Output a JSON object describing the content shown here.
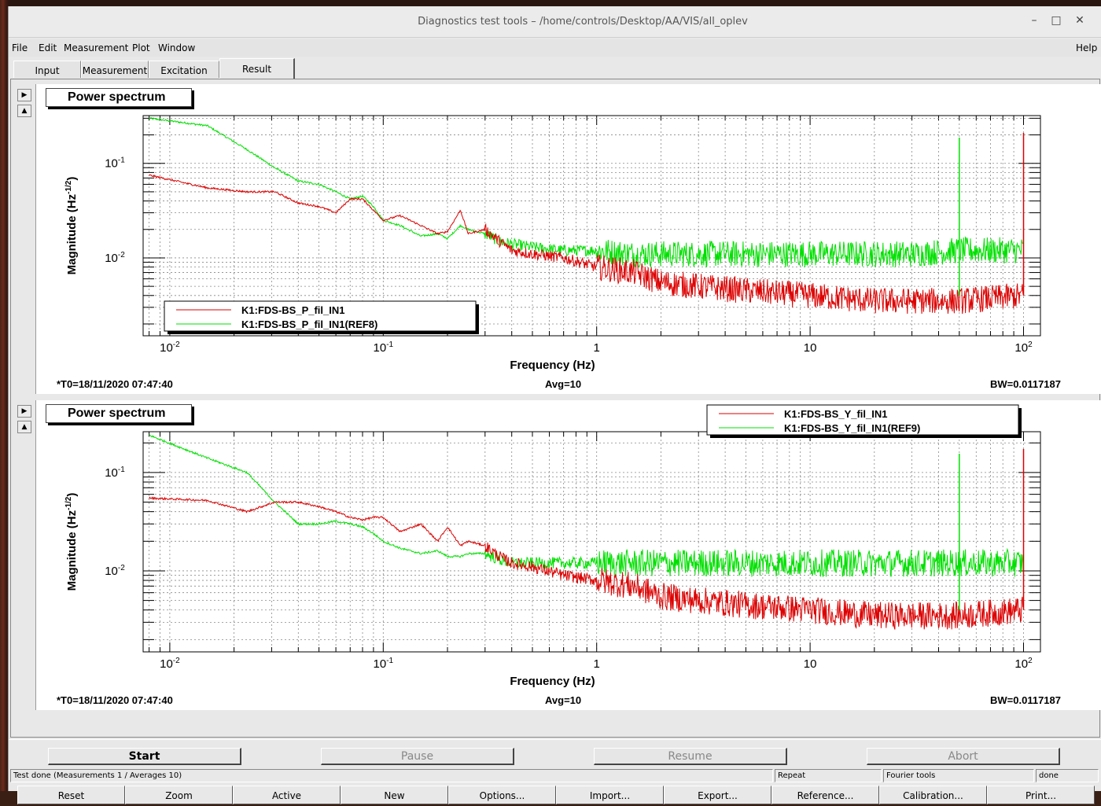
{
  "window": {
    "title": "Diagnostics test tools – /home/controls/Desktop/AA/VIS/all_oplev",
    "minimize": "–",
    "maximize": "□",
    "close": "✕"
  },
  "menubar": {
    "items": [
      "File",
      "Edit",
      "Measurement",
      "Plot",
      "Window"
    ],
    "help": "Help"
  },
  "tabs": [
    "Input",
    "Measurement",
    "Excitation",
    "Result"
  ],
  "active_tab": "Result",
  "colors": {
    "series_measured": "#dd0000",
    "series_reference": "#00e000",
    "timestamp": "#ee0000"
  },
  "plots": [
    {
      "title": "Power spectrum",
      "timestamp": "*T0=18/11/2020 07:47:40",
      "avg": "Avg=10",
      "bw": "BW=0.0117187",
      "legend": [
        "K1:FDS-BS_P_fil_IN1",
        "K1:FDS-BS_P_fil_IN1(REF8)"
      ],
      "legend_position": "bottom-left",
      "xlabel": "Frequency (Hz)",
      "ylabel": "Magnitude (Hz",
      "ylabel_exp": "-1/2",
      "ylabel_close": ")"
    },
    {
      "title": "Power spectrum",
      "timestamp": "*T0=18/11/2020 07:47:40",
      "avg": "Avg=10",
      "bw": "BW=0.0117187",
      "legend": [
        "K1:FDS-BS_Y_fil_IN1",
        "K1:FDS-BS_Y_fil_IN1(REF9)"
      ],
      "legend_position": "top-right",
      "xlabel": "Frequency (Hz)",
      "ylabel": "Magnitude (Hz",
      "ylabel_exp": "-1/2",
      "ylabel_close": ")"
    }
  ],
  "chart_data": [
    {
      "type": "line",
      "title": "Power spectrum",
      "xlabel": "Frequency (Hz)",
      "ylabel": "Magnitude (Hz^-1/2)",
      "xscale": "log",
      "yscale": "log",
      "xlim": [
        0.0075,
        120
      ],
      "ylim": [
        0.0015,
        0.32
      ],
      "grid": true,
      "xticks": [
        {
          "base": "10",
          "exp": "-2",
          "v": 0.01
        },
        {
          "base": "10",
          "exp": "-1",
          "v": 0.1
        },
        {
          "base": "1",
          "exp": "",
          "v": 1
        },
        {
          "base": "10",
          "exp": "",
          "v": 10
        },
        {
          "base": "10",
          "exp": "2",
          "v": 100
        }
      ],
      "yticks": [
        {
          "base": "10",
          "exp": "-1",
          "v": 0.1
        },
        {
          "base": "10",
          "exp": "-2",
          "v": 0.01
        }
      ],
      "series": [
        {
          "name": "K1:FDS-BS_P_fil_IN1",
          "x": [
            0.008,
            0.015,
            0.023,
            0.031,
            0.04,
            0.05,
            0.06,
            0.07,
            0.08,
            0.09,
            0.1,
            0.12,
            0.15,
            0.18,
            0.2,
            0.23,
            0.25,
            0.3,
            0.35,
            0.4,
            0.5,
            0.7,
            1,
            1.5,
            2,
            3,
            5,
            10,
            20,
            30,
            50,
            100
          ],
          "values": [
            0.075,
            0.055,
            0.05,
            0.05,
            0.038,
            0.035,
            0.03,
            0.042,
            0.042,
            0.032,
            0.025,
            0.028,
            0.022,
            0.018,
            0.019,
            0.032,
            0.018,
            0.02,
            0.015,
            0.012,
            0.011,
            0.01,
            0.008,
            0.007,
            0.0055,
            0.005,
            0.0045,
            0.004,
            0.0035,
            0.0035,
            0.0035,
            0.004
          ]
        },
        {
          "name": "K1:FDS-BS_P_fil_IN1(REF8)",
          "x": [
            0.008,
            0.015,
            0.023,
            0.031,
            0.04,
            0.05,
            0.06,
            0.07,
            0.08,
            0.09,
            0.1,
            0.12,
            0.15,
            0.18,
            0.2,
            0.23,
            0.25,
            0.3,
            0.35,
            0.4,
            0.5,
            0.7,
            1,
            1.5,
            2,
            3,
            5,
            10,
            20,
            30,
            50,
            100
          ],
          "values": [
            0.3,
            0.25,
            0.14,
            0.09,
            0.065,
            0.06,
            0.05,
            0.042,
            0.045,
            0.035,
            0.025,
            0.022,
            0.017,
            0.018,
            0.016,
            0.022,
            0.02,
            0.018,
            0.015,
            0.014,
            0.013,
            0.012,
            0.012,
            0.011,
            0.011,
            0.011,
            0.011,
            0.011,
            0.011,
            0.011,
            0.012,
            0.012
          ]
        }
      ]
    },
    {
      "type": "line",
      "title": "Power spectrum",
      "xlabel": "Frequency (Hz)",
      "ylabel": "Magnitude (Hz^-1/2)",
      "xscale": "log",
      "yscale": "log",
      "xlim": [
        0.0075,
        120
      ],
      "ylim": [
        0.0015,
        0.26
      ],
      "grid": true,
      "xticks": [
        {
          "base": "10",
          "exp": "-2",
          "v": 0.01
        },
        {
          "base": "10",
          "exp": "-1",
          "v": 0.1
        },
        {
          "base": "1",
          "exp": "",
          "v": 1
        },
        {
          "base": "10",
          "exp": "",
          "v": 10
        },
        {
          "base": "10",
          "exp": "2",
          "v": 100
        }
      ],
      "yticks": [
        {
          "base": "10",
          "exp": "-1",
          "v": 0.1
        },
        {
          "base": "10",
          "exp": "-2",
          "v": 0.01
        }
      ],
      "series": [
        {
          "name": "K1:FDS-BS_Y_fil_IN1",
          "x": [
            0.008,
            0.015,
            0.023,
            0.031,
            0.04,
            0.05,
            0.06,
            0.07,
            0.08,
            0.09,
            0.1,
            0.12,
            0.15,
            0.18,
            0.2,
            0.23,
            0.25,
            0.3,
            0.35,
            0.4,
            0.5,
            0.7,
            1,
            1.5,
            2,
            3,
            5,
            10,
            20,
            30,
            50,
            100
          ],
          "values": [
            0.055,
            0.052,
            0.04,
            0.05,
            0.05,
            0.045,
            0.04,
            0.035,
            0.033,
            0.035,
            0.035,
            0.025,
            0.03,
            0.02,
            0.028,
            0.018,
            0.02,
            0.018,
            0.014,
            0.012,
            0.011,
            0.009,
            0.008,
            0.007,
            0.0055,
            0.005,
            0.0045,
            0.004,
            0.0035,
            0.0035,
            0.0035,
            0.004
          ]
        },
        {
          "name": "K1:FDS-BS_Y_fil_IN1(REF9)",
          "x": [
            0.008,
            0.015,
            0.023,
            0.031,
            0.04,
            0.05,
            0.06,
            0.07,
            0.08,
            0.09,
            0.1,
            0.12,
            0.15,
            0.18,
            0.2,
            0.23,
            0.25,
            0.3,
            0.35,
            0.4,
            0.5,
            0.7,
            1,
            1.5,
            2,
            3,
            5,
            10,
            20,
            30,
            50,
            100
          ],
          "values": [
            0.24,
            0.14,
            0.1,
            0.05,
            0.03,
            0.03,
            0.032,
            0.03,
            0.028,
            0.024,
            0.02,
            0.017,
            0.015,
            0.016,
            0.014,
            0.014,
            0.015,
            0.015,
            0.013,
            0.012,
            0.012,
            0.012,
            0.012,
            0.012,
            0.012,
            0.012,
            0.012,
            0.012,
            0.012,
            0.012,
            0.012,
            0.012
          ]
        }
      ]
    }
  ],
  "plot_buttons": [
    "Reset",
    "Zoom",
    "Active",
    "New",
    "Options...",
    "Import...",
    "Export...",
    "Reference...",
    "Calibration...",
    "Print..."
  ],
  "controls": {
    "start": "Start",
    "pause": "Pause",
    "resume": "Resume",
    "abort": "Abort"
  },
  "status": {
    "message": "Test done (Measurements 1 / Averages 10)",
    "repeat": "Repeat",
    "fourier": "Fourier tools",
    "state": "done"
  }
}
